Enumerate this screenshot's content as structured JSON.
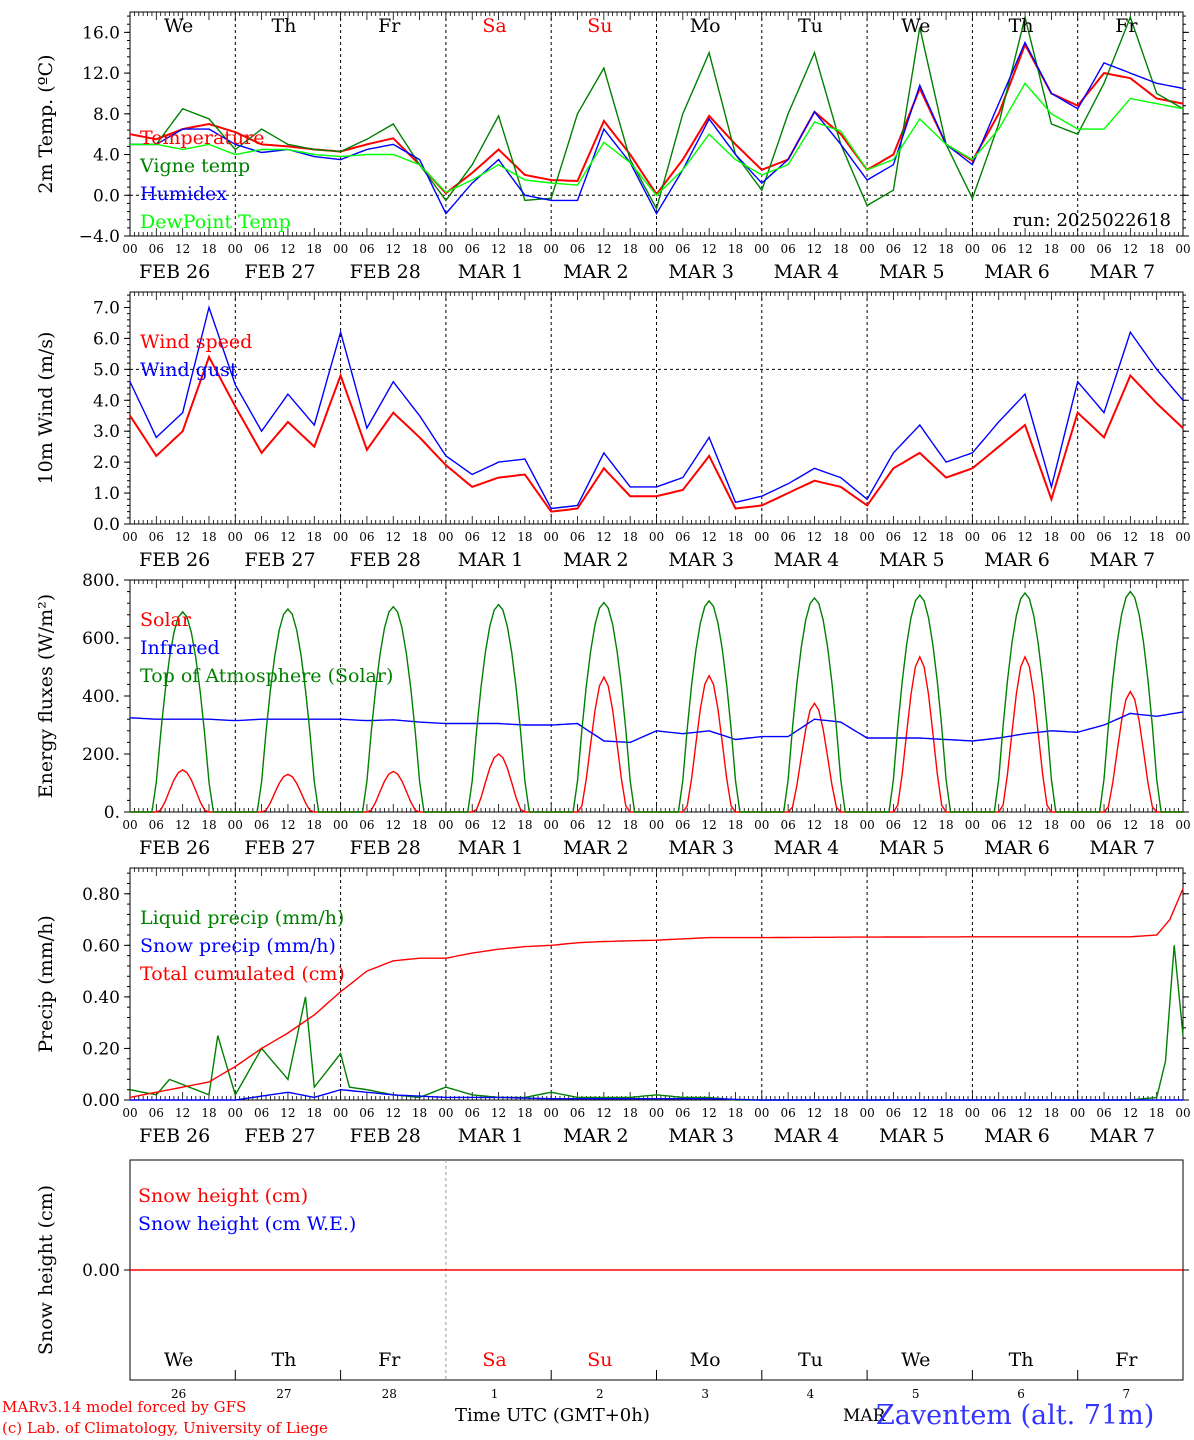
{
  "days": [
    "We",
    "Th",
    "Fr",
    "Sa",
    "Su",
    "Mo",
    "Tu",
    "We",
    "Th",
    "Fr"
  ],
  "weekend_days": [
    "Sa",
    "Su"
  ],
  "date_labels": [
    "FEB 26",
    "FEB 27",
    "FEB 28",
    "MAR  1",
    "MAR  2",
    "MAR  3",
    "MAR  4",
    "MAR  5",
    "MAR  6",
    "MAR  7"
  ],
  "hour_ticks": [
    "00",
    "06",
    "12",
    "18"
  ],
  "day_numbers": [
    "26",
    "27",
    "28",
    "1",
    "2",
    "3",
    "4",
    "5",
    "6",
    "7"
  ],
  "colors": {
    "red": "#ff0000",
    "green": "#008000",
    "blue": "#0000ff",
    "lightgreen": "#00ff00"
  },
  "footer": {
    "model": "MARv3.14 model forced by GFS",
    "lab": "(c) Lab. of Climatology, University of Liege",
    "time_axis": "Time UTC (GMT+0h)",
    "month_fragment": "MAR",
    "station": "Zaventem (alt. 71m)"
  },
  "chart_data": [
    {
      "type": "line",
      "ylabel": "2m Temp. (ºC)",
      "ylim": [
        -4,
        18
      ],
      "yticks": [
        "16.0",
        "12.0",
        "8.0",
        "4.0",
        "0.0",
        "−4.0"
      ],
      "ytick_values": [
        16,
        12,
        8,
        4,
        0,
        -4
      ],
      "ref_line": 0,
      "annotation": "run: 2025022618",
      "x_unit": "hours since FEB 26 00 UTC",
      "series": [
        {
          "name": "Temperature",
          "color": "red",
          "x": [
            0,
            6,
            12,
            18,
            24,
            30,
            36,
            42,
            48,
            54,
            60,
            66,
            72,
            78,
            84,
            90,
            96,
            102,
            108,
            114,
            120,
            126,
            132,
            138,
            144,
            150,
            156,
            162,
            168,
            174,
            180,
            186,
            192,
            198,
            204,
            210,
            216,
            222,
            228,
            234,
            240
          ],
          "y": [
            6,
            5.5,
            6.5,
            7,
            6.2,
            5,
            4.8,
            4.5,
            4.3,
            5,
            5.6,
            3,
            0.2,
            2.2,
            4.5,
            2,
            1.5,
            1.4,
            7.3,
            4,
            0.1,
            3.5,
            7.8,
            5,
            2.5,
            3.5,
            8.2,
            6,
            2.5,
            4,
            10.5,
            5,
            3.4,
            8,
            14.8,
            10,
            8.8,
            12,
            11.5,
            9.5,
            9
          ]
        },
        {
          "name": "Vigne temp",
          "color": "green",
          "x": [
            0,
            6,
            12,
            18,
            24,
            30,
            36,
            42,
            48,
            54,
            60,
            66,
            72,
            78,
            84,
            90,
            96,
            102,
            108,
            114,
            120,
            126,
            132,
            138,
            144,
            150,
            156,
            162,
            168,
            174,
            180,
            186,
            192,
            198,
            204,
            210,
            216,
            222,
            228,
            234,
            240
          ],
          "y": [
            5,
            5,
            8.5,
            7.5,
            4.5,
            6.5,
            5,
            4.5,
            4.3,
            5.5,
            7,
            3,
            -0.5,
            3,
            7.8,
            -0.5,
            -0.3,
            8,
            12.5,
            3.5,
            -1.3,
            8,
            14,
            4,
            0.5,
            8,
            14,
            5,
            -1,
            0.5,
            16.5,
            5,
            -0.3,
            7,
            17.5,
            7,
            6,
            11,
            17.5,
            10,
            8.5
          ]
        },
        {
          "name": "Humidex",
          "color": "blue",
          "x": [
            0,
            6,
            12,
            18,
            24,
            30,
            36,
            42,
            48,
            54,
            60,
            66,
            72,
            78,
            84,
            90,
            96,
            102,
            108,
            114,
            120,
            126,
            132,
            138,
            144,
            150,
            156,
            162,
            168,
            174,
            180,
            186,
            192,
            198,
            204,
            210,
            216,
            222,
            228,
            234,
            240
          ],
          "y": [
            5,
            5,
            6.5,
            6.5,
            5,
            4.2,
            4.5,
            3.8,
            3.5,
            4.5,
            5,
            3.5,
            -1.8,
            1.2,
            3.5,
            0,
            -0.5,
            -0.5,
            6.5,
            3.2,
            -1.8,
            2.5,
            7.5,
            4,
            1.2,
            3.5,
            8.2,
            5,
            1.5,
            3,
            10.8,
            5,
            3,
            9,
            15,
            10,
            8.5,
            13,
            12,
            11,
            10.5
          ]
        },
        {
          "name": "DewPoint Temp",
          "color": "lightgreen",
          "x": [
            0,
            6,
            12,
            18,
            24,
            30,
            36,
            42,
            48,
            54,
            60,
            66,
            72,
            78,
            84,
            90,
            96,
            102,
            108,
            114,
            120,
            126,
            132,
            138,
            144,
            150,
            156,
            162,
            168,
            174,
            180,
            186,
            192,
            198,
            204,
            210,
            216,
            222,
            228,
            234,
            240
          ],
          "y": [
            5,
            5,
            4.5,
            5,
            4,
            4.5,
            4.5,
            4,
            3.8,
            4,
            4,
            3,
            0.3,
            1.5,
            3,
            1.5,
            1.2,
            1,
            5.2,
            3.2,
            0,
            2.5,
            6,
            3.5,
            2,
            3,
            7.2,
            6.3,
            2.5,
            3.5,
            7.5,
            5,
            3.5,
            6.5,
            11,
            8,
            6.5,
            6.5,
            9.5,
            9,
            8.5
          ]
        }
      ]
    },
    {
      "type": "line",
      "ylabel": "10m Wind (m/s)",
      "ylim": [
        0,
        7.5
      ],
      "yticks": [
        "7.0",
        "6.0",
        "5.0",
        "4.0",
        "3.0",
        "2.0",
        "1.0",
        "0.0"
      ],
      "ytick_values": [
        7,
        6,
        5,
        4,
        3,
        2,
        1,
        0
      ],
      "ref_line": 5,
      "x_unit": "hours since FEB 26 00 UTC",
      "series": [
        {
          "name": "Wind speed",
          "color": "red",
          "x": [
            0,
            6,
            12,
            18,
            24,
            30,
            36,
            42,
            48,
            54,
            60,
            66,
            72,
            78,
            84,
            90,
            96,
            102,
            108,
            114,
            120,
            126,
            132,
            138,
            144,
            150,
            156,
            162,
            168,
            174,
            180,
            186,
            192,
            198,
            204,
            210,
            216,
            222,
            228,
            234,
            240
          ],
          "y": [
            3.5,
            2.2,
            3,
            5.4,
            3.8,
            2.3,
            3.3,
            2.5,
            4.8,
            2.4,
            3.6,
            2.8,
            1.9,
            1.2,
            1.5,
            1.6,
            0.4,
            0.5,
            1.8,
            0.9,
            0.9,
            1.1,
            2.2,
            0.5,
            0.6,
            1.0,
            1.4,
            1.2,
            0.6,
            1.8,
            2.3,
            1.5,
            1.8,
            2.5,
            3.2,
            0.8,
            3.6,
            2.8,
            4.8,
            3.9,
            3.1
          ]
        },
        {
          "name": "Wind gust",
          "color": "blue",
          "x": [
            0,
            6,
            12,
            18,
            24,
            30,
            36,
            42,
            48,
            54,
            60,
            66,
            72,
            78,
            84,
            90,
            96,
            102,
            108,
            114,
            120,
            126,
            132,
            138,
            144,
            150,
            156,
            162,
            168,
            174,
            180,
            186,
            192,
            198,
            204,
            210,
            216,
            222,
            228,
            234,
            240
          ],
          "y": [
            4.6,
            2.8,
            3.6,
            7.0,
            4.5,
            3.0,
            4.2,
            3.2,
            6.2,
            3.1,
            4.6,
            3.5,
            2.2,
            1.6,
            2.0,
            2.1,
            0.5,
            0.6,
            2.3,
            1.2,
            1.2,
            1.5,
            2.8,
            0.7,
            0.9,
            1.3,
            1.8,
            1.5,
            0.8,
            2.3,
            3.2,
            2.0,
            2.3,
            3.3,
            4.2,
            1.2,
            4.6,
            3.6,
            6.2,
            5.0,
            4.0
          ]
        }
      ]
    },
    {
      "type": "line",
      "ylabel": "Energy fluxes (W/m²)",
      "ylim": [
        0,
        800
      ],
      "yticks": [
        "800.",
        "600.",
        "400.",
        "200.",
        "0."
      ],
      "ytick_values": [
        800,
        600,
        400,
        200,
        0
      ],
      "x_unit": "hours since FEB 26 00 UTC",
      "day_peaks": {
        "solar": [
          145,
          130,
          140,
          200,
          465,
          470,
          375,
          535,
          535,
          415
        ],
        "top_of_atmosphere": [
          690,
          700,
          708,
          715,
          722,
          728,
          738,
          748,
          755,
          760
        ]
      },
      "series": [
        {
          "name": "Solar",
          "color": "red"
        },
        {
          "name": "Infrared",
          "color": "blue",
          "x": [
            0,
            6,
            12,
            18,
            24,
            30,
            36,
            42,
            48,
            54,
            60,
            66,
            72,
            78,
            84,
            90,
            96,
            102,
            108,
            114,
            120,
            126,
            132,
            138,
            144,
            150,
            156,
            162,
            168,
            174,
            180,
            186,
            192,
            198,
            204,
            210,
            216,
            222,
            228,
            234,
            240
          ],
          "y": [
            325,
            320,
            320,
            320,
            315,
            320,
            320,
            320,
            320,
            315,
            318,
            310,
            305,
            305,
            305,
            300,
            300,
            305,
            245,
            240,
            280,
            270,
            280,
            250,
            260,
            260,
            320,
            310,
            255,
            255,
            255,
            250,
            245,
            255,
            270,
            280,
            275,
            300,
            340,
            330,
            345
          ]
        },
        {
          "name": "Top of Atmosphere (Solar)",
          "color": "green"
        }
      ]
    },
    {
      "type": "line",
      "ylabel": "Precip (mm/h)",
      "ylim": [
        0,
        0.9
      ],
      "yticks": [
        "0.80",
        "0.60",
        "0.40",
        "0.20",
        "0.00"
      ],
      "ytick_values": [
        0.8,
        0.6,
        0.4,
        0.2,
        0
      ],
      "x_unit": "hours since FEB 26 00 UTC",
      "series": [
        {
          "name": "Liquid precip (mm/h)",
          "color": "green",
          "x": [
            0,
            6,
            9,
            12,
            18,
            20,
            24,
            30,
            36,
            40,
            42,
            48,
            50,
            54,
            60,
            66,
            72,
            78,
            84,
            90,
            96,
            102,
            108,
            114,
            120,
            126,
            132,
            138,
            144,
            150,
            156,
            162,
            168,
            174,
            180,
            186,
            192,
            198,
            204,
            210,
            216,
            222,
            228,
            234,
            236,
            238,
            240
          ],
          "y": [
            0.04,
            0.02,
            0.08,
            0.06,
            0.02,
            0.25,
            0.02,
            0.2,
            0.08,
            0.4,
            0.05,
            0.18,
            0.05,
            0.04,
            0.02,
            0.01,
            0.05,
            0.02,
            0.01,
            0.01,
            0.03,
            0.01,
            0.01,
            0.01,
            0.02,
            0.01,
            0.01,
            0.0,
            0.0,
            0.0,
            0.0,
            0.0,
            0.0,
            0.0,
            0.0,
            0.0,
            0.0,
            0.0,
            0.0,
            0.0,
            0.0,
            0.0,
            0.0,
            0.01,
            0.15,
            0.6,
            0.25
          ]
        },
        {
          "name": "Snow precip (mm/h)",
          "color": "blue",
          "x": [
            0,
            24,
            36,
            42,
            48,
            54,
            60,
            72,
            84,
            96,
            108,
            120,
            132,
            144,
            240
          ],
          "y": [
            0,
            0,
            0.03,
            0.01,
            0.04,
            0.03,
            0.02,
            0.01,
            0.01,
            0.005,
            0.005,
            0.005,
            0.005,
            0,
            0
          ]
        },
        {
          "name": "Total cumulated (cm)",
          "color": "red",
          "x": [
            0,
            12,
            18,
            24,
            30,
            36,
            42,
            48,
            54,
            60,
            66,
            72,
            78,
            84,
            90,
            96,
            102,
            108,
            120,
            132,
            144,
            168,
            192,
            216,
            228,
            234,
            237,
            240
          ],
          "y": [
            0.01,
            0.05,
            0.07,
            0.13,
            0.2,
            0.26,
            0.33,
            0.42,
            0.5,
            0.54,
            0.55,
            0.55,
            0.57,
            0.585,
            0.595,
            0.6,
            0.61,
            0.615,
            0.62,
            0.63,
            0.63,
            0.632,
            0.633,
            0.633,
            0.633,
            0.64,
            0.7,
            0.82
          ]
        }
      ]
    },
    {
      "type": "line",
      "ylabel": "Snow height (cm)",
      "ylim": [
        -1,
        1
      ],
      "yticks": [
        "0.00"
      ],
      "ytick_values": [
        0
      ],
      "x_unit": "hours since FEB 26 00 UTC",
      "series": [
        {
          "name": "Snow height (cm)",
          "color": "red",
          "x": [
            0,
            240
          ],
          "y": [
            0,
            0
          ]
        },
        {
          "name": "Snow height (cm W.E.)",
          "color": "blue",
          "x": [],
          "y": []
        }
      ]
    }
  ]
}
